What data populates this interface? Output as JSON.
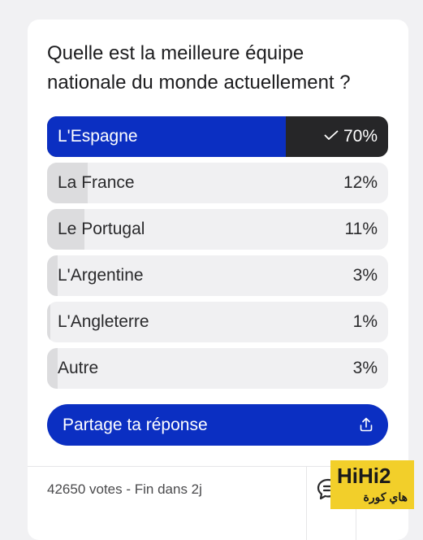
{
  "poll": {
    "question": "Quelle est la meilleure équipe nationale du monde actuellement ?",
    "options": [
      {
        "label": "L'Espagne",
        "percent_text": "70%",
        "percent": 70,
        "selected": true
      },
      {
        "label": "La France",
        "percent_text": "12%",
        "percent": 12,
        "selected": false
      },
      {
        "label": "Le Portugal",
        "percent_text": "11%",
        "percent": 11,
        "selected": false
      },
      {
        "label": "L'Argentine",
        "percent_text": "3%",
        "percent": 3,
        "selected": false
      },
      {
        "label": "L'Angleterre",
        "percent_text": "1%",
        "percent": 1,
        "selected": false
      },
      {
        "label": "Autre",
        "percent_text": "3%",
        "percent": 3,
        "selected": false
      }
    ],
    "share_label": "Partage ta réponse",
    "share_icon": "share-icon",
    "footer_text": "42650 votes - Fin dans 2j",
    "comment_icon": "comment-icon"
  },
  "watermark": {
    "logo": "HiHi2",
    "subtitle": "هاي كورة"
  },
  "colors": {
    "accent": "#0b2fc2",
    "selected_bg": "#262628",
    "option_bg": "#f0f0f2",
    "option_fill": "#dcdcde",
    "watermark_bg": "#f2cf2a"
  }
}
